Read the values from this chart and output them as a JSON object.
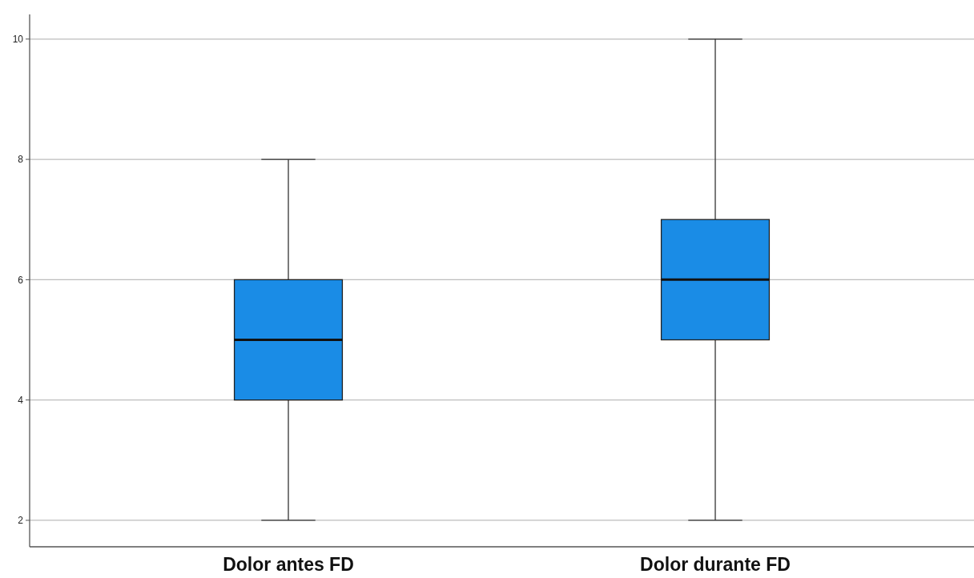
{
  "chart_data": {
    "type": "box",
    "categories": [
      "Dolor antes FD",
      "Dolor durante FD"
    ],
    "color": "#1a8ce6",
    "boxes": [
      {
        "low": 2,
        "q1": 4,
        "median": 5,
        "q3": 6,
        "high": 8
      },
      {
        "low": 2,
        "q1": 5,
        "median": 6,
        "q3": 7,
        "high": 10
      }
    ],
    "ylim": [
      1.56,
      10.41
    ],
    "yticks": [
      2,
      4,
      6,
      8,
      10
    ],
    "grid": "y"
  }
}
